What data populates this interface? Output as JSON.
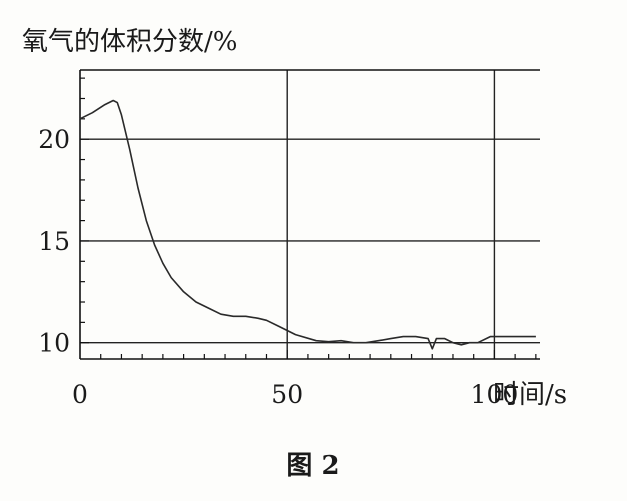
{
  "figure_caption": "图 2",
  "chart_data": {
    "type": "line",
    "ylabel": "氧气的体积分数/%",
    "xlabel": "时间/s",
    "xlim": [
      0,
      111
    ],
    "ylim": [
      9.2,
      23.4
    ],
    "xticks": [
      0,
      50,
      100
    ],
    "yticks": [
      10,
      15,
      20
    ],
    "grid": true,
    "series": [
      {
        "x": [
          0,
          3,
          6,
          8,
          9,
          10,
          12,
          14,
          16,
          18,
          20,
          22,
          25,
          28,
          31,
          34,
          37,
          40,
          43,
          45,
          48,
          52,
          57,
          60,
          63,
          66,
          69,
          72,
          75,
          78,
          81,
          84,
          85,
          86,
          88,
          90,
          92,
          94,
          96,
          99,
          105,
          110
        ],
        "y": [
          21.0,
          21.3,
          21.7,
          21.9,
          21.8,
          21.2,
          19.5,
          17.6,
          16.0,
          14.8,
          13.9,
          13.2,
          12.5,
          12.0,
          11.7,
          11.4,
          11.3,
          11.3,
          11.2,
          11.1,
          10.8,
          10.4,
          10.1,
          10.05,
          10.1,
          10.0,
          10.0,
          10.1,
          10.2,
          10.3,
          10.3,
          10.2,
          9.7,
          10.2,
          10.2,
          10.0,
          9.9,
          10.0,
          10.0,
          10.3,
          10.3,
          10.3
        ]
      }
    ]
  }
}
